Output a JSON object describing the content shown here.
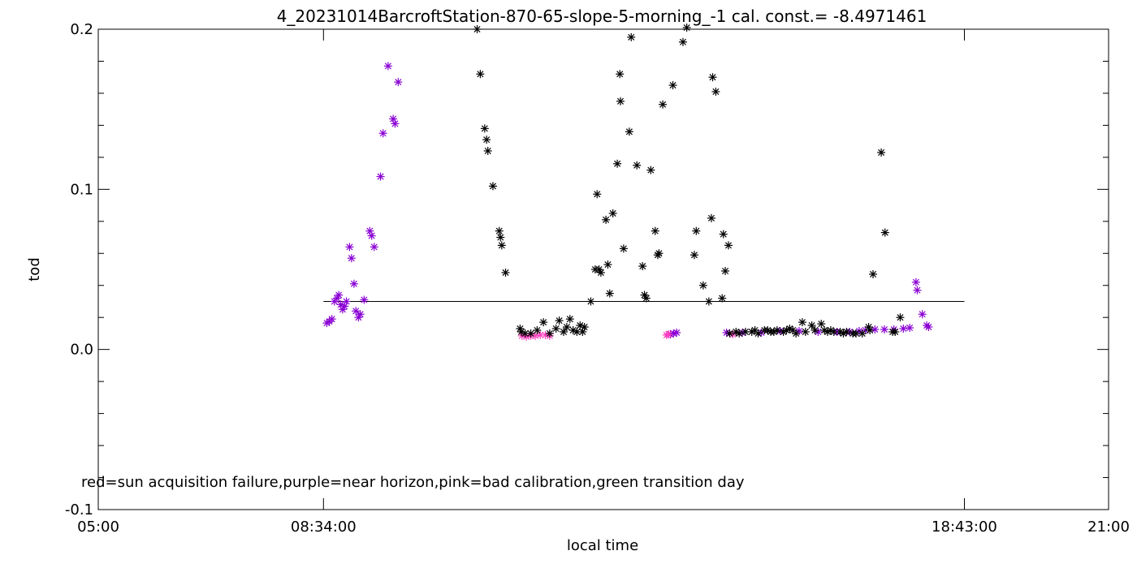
{
  "chart_data": {
    "type": "scatter",
    "title": "4_20231014BarcroftStation-870-65-slope-5-morning_-1 cal. const.= -8.4971461",
    "xlabel": "local time",
    "ylabel": "tod",
    "note": "red=sun acquisition failure,purple=near horizon,pink=bad calibration,green transition day",
    "xlim_hours": [
      5,
      21
    ],
    "ylim": [
      -0.1,
      0.2
    ],
    "x_ticks": [
      {
        "value": 5.0,
        "label": "05:00"
      },
      {
        "value": 8.5667,
        "label": "08:34:00"
      },
      {
        "value": 18.7167,
        "label": "18:43:00"
      },
      {
        "value": 21.0,
        "label": "21:00"
      }
    ],
    "y_ticks": [
      {
        "value": -0.1,
        "label": "-0.1"
      },
      {
        "value": 0.0,
        "label": "0.0"
      },
      {
        "value": 0.1,
        "label": "0.1"
      },
      {
        "value": 0.2,
        "label": "0.2"
      }
    ],
    "reference_line": {
      "x_start": 8.5667,
      "x_end": 18.7167,
      "y": 0.03
    },
    "colors": {
      "normal": "#000000",
      "near_horizon": "#8a00d4",
      "bad_calibration": "#ff3fbf"
    },
    "series": [
      {
        "name": "near horizon",
        "color": "#8a00d4",
        "points": [
          [
            8.62,
            0.0165
          ],
          [
            8.66,
            0.0175
          ],
          [
            8.7,
            0.019
          ],
          [
            8.74,
            0.03
          ],
          [
            8.78,
            0.032
          ],
          [
            8.81,
            0.034
          ],
          [
            8.84,
            0.028
          ],
          [
            8.87,
            0.025
          ],
          [
            8.9,
            0.027
          ],
          [
            8.93,
            0.03
          ],
          [
            8.98,
            0.064
          ],
          [
            9.01,
            0.057
          ],
          [
            9.05,
            0.041
          ],
          [
            9.08,
            0.024
          ],
          [
            9.12,
            0.02
          ],
          [
            9.15,
            0.022
          ],
          [
            9.21,
            0.031
          ],
          [
            9.3,
            0.074
          ],
          [
            9.33,
            0.071
          ],
          [
            9.37,
            0.064
          ],
          [
            9.47,
            0.108
          ],
          [
            9.51,
            0.135
          ],
          [
            9.59,
            0.177
          ],
          [
            9.67,
            0.144
          ],
          [
            9.7,
            0.141
          ],
          [
            9.75,
            0.167
          ],
          [
            14.06,
            0.0095
          ],
          [
            14.11,
            0.01
          ],
          [
            14.16,
            0.0105
          ],
          [
            14.95,
            0.0105
          ],
          [
            15.2,
            0.0105
          ],
          [
            15.5,
            0.0105
          ],
          [
            15.8,
            0.0115
          ],
          [
            16.1,
            0.0115
          ],
          [
            16.4,
            0.011
          ],
          [
            16.7,
            0.011
          ],
          [
            16.9,
            0.011
          ],
          [
            17.05,
            0.0115
          ],
          [
            17.15,
            0.012
          ],
          [
            17.3,
            0.0125
          ],
          [
            17.45,
            0.0125
          ],
          [
            17.6,
            0.0125
          ],
          [
            17.75,
            0.013
          ],
          [
            17.85,
            0.0135
          ],
          [
            17.95,
            0.042
          ],
          [
            17.97,
            0.037
          ],
          [
            18.05,
            0.022
          ],
          [
            18.12,
            0.015
          ],
          [
            18.15,
            0.014
          ]
        ]
      },
      {
        "name": "bad calibration",
        "color": "#ff3fbf",
        "points": [
          [
            11.71,
            0.0085
          ],
          [
            11.78,
            0.008
          ],
          [
            11.85,
            0.0085
          ],
          [
            11.92,
            0.0085
          ],
          [
            12.0,
            0.009
          ],
          [
            12.08,
            0.009
          ],
          [
            12.15,
            0.0085
          ],
          [
            14.0,
            0.009
          ],
          [
            14.03,
            0.0095
          ],
          [
            15.05,
            0.0095
          ]
        ]
      },
      {
        "name": "normal",
        "color": "#000000",
        "points": [
          [
            11.0,
            0.2
          ],
          [
            11.05,
            0.172
          ],
          [
            11.12,
            0.138
          ],
          [
            11.15,
            0.131
          ],
          [
            11.17,
            0.124
          ],
          [
            11.25,
            0.102
          ],
          [
            11.35,
            0.074
          ],
          [
            11.37,
            0.07
          ],
          [
            11.39,
            0.065
          ],
          [
            11.45,
            0.048
          ],
          [
            11.68,
            0.013
          ],
          [
            11.7,
            0.011
          ],
          [
            11.76,
            0.01
          ],
          [
            11.85,
            0.01
          ],
          [
            11.95,
            0.012
          ],
          [
            12.05,
            0.017
          ],
          [
            12.15,
            0.01
          ],
          [
            12.25,
            0.013
          ],
          [
            12.3,
            0.018
          ],
          [
            12.37,
            0.011
          ],
          [
            12.42,
            0.014
          ],
          [
            12.47,
            0.019
          ],
          [
            12.52,
            0.012
          ],
          [
            12.58,
            0.011
          ],
          [
            12.63,
            0.015
          ],
          [
            12.67,
            0.011
          ],
          [
            12.7,
            0.014
          ],
          [
            12.8,
            0.03
          ],
          [
            12.87,
            0.05
          ],
          [
            12.9,
            0.097
          ],
          [
            12.93,
            0.05
          ],
          [
            12.96,
            0.048
          ],
          [
            13.04,
            0.081
          ],
          [
            13.07,
            0.053
          ],
          [
            13.1,
            0.035
          ],
          [
            13.15,
            0.085
          ],
          [
            13.22,
            0.116
          ],
          [
            13.26,
            0.172
          ],
          [
            13.27,
            0.155
          ],
          [
            13.32,
            0.063
          ],
          [
            13.41,
            0.136
          ],
          [
            13.44,
            0.195
          ],
          [
            13.53,
            0.115
          ],
          [
            13.62,
            0.052
          ],
          [
            13.65,
            0.034
          ],
          [
            13.68,
            0.032
          ],
          [
            13.75,
            0.112
          ],
          [
            13.82,
            0.074
          ],
          [
            13.86,
            0.059
          ],
          [
            13.88,
            0.06
          ],
          [
            13.94,
            0.153
          ],
          [
            14.1,
            0.165
          ],
          [
            14.26,
            0.192
          ],
          [
            14.32,
            0.201
          ],
          [
            14.44,
            0.059
          ],
          [
            14.47,
            0.074
          ],
          [
            14.58,
            0.04
          ],
          [
            14.67,
            0.03
          ],
          [
            14.71,
            0.082
          ],
          [
            14.73,
            0.17
          ],
          [
            14.78,
            0.161
          ],
          [
            14.88,
            0.032
          ],
          [
            14.9,
            0.072
          ],
          [
            14.93,
            0.049
          ],
          [
            14.98,
            0.065
          ],
          [
            15.0,
            0.01
          ],
          [
            15.1,
            0.011
          ],
          [
            15.15,
            0.01
          ],
          [
            15.25,
            0.011
          ],
          [
            15.35,
            0.011
          ],
          [
            15.4,
            0.012
          ],
          [
            15.45,
            0.01
          ],
          [
            15.55,
            0.012
          ],
          [
            15.6,
            0.012
          ],
          [
            15.65,
            0.011
          ],
          [
            15.7,
            0.011
          ],
          [
            15.75,
            0.012
          ],
          [
            15.85,
            0.011
          ],
          [
            15.9,
            0.012
          ],
          [
            15.95,
            0.013
          ],
          [
            16.0,
            0.012
          ],
          [
            16.05,
            0.01
          ],
          [
            16.15,
            0.017
          ],
          [
            16.2,
            0.011
          ],
          [
            16.3,
            0.015
          ],
          [
            16.35,
            0.012
          ],
          [
            16.45,
            0.016
          ],
          [
            16.5,
            0.012
          ],
          [
            16.55,
            0.011
          ],
          [
            16.6,
            0.012
          ],
          [
            16.65,
            0.011
          ],
          [
            16.75,
            0.011
          ],
          [
            16.8,
            0.01
          ],
          [
            16.85,
            0.011
          ],
          [
            16.95,
            0.01
          ],
          [
            17.0,
            0.01
          ],
          [
            17.1,
            0.01
          ],
          [
            17.2,
            0.014
          ],
          [
            17.22,
            0.012
          ],
          [
            17.27,
            0.047
          ],
          [
            17.4,
            0.123
          ],
          [
            17.46,
            0.073
          ],
          [
            17.58,
            0.011
          ],
          [
            17.62,
            0.011
          ],
          [
            17.7,
            0.02
          ]
        ]
      }
    ]
  }
}
